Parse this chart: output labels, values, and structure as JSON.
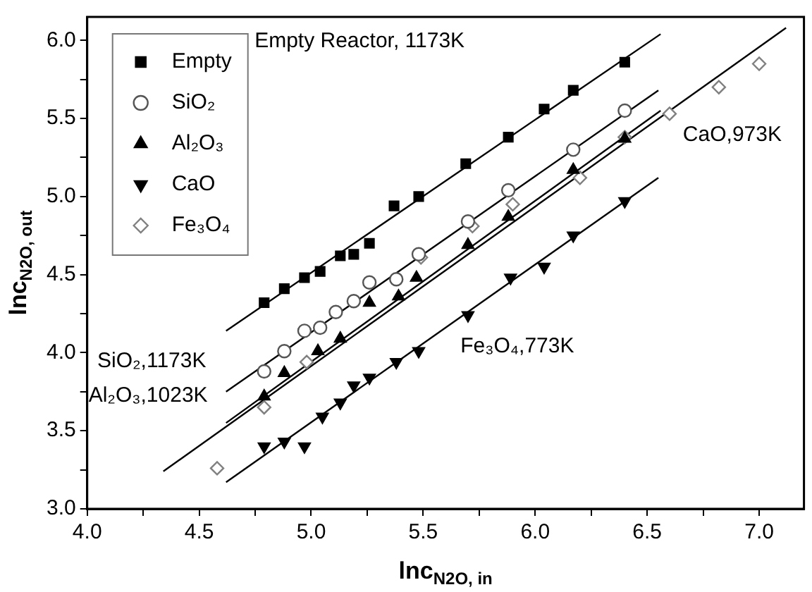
{
  "chart_data": {
    "type": "scatter",
    "xlabel": "lnc$_{N2O, in}$",
    "ylabel": "lnc$_{N2O, out}$",
    "legend": "top left",
    "xlim": [
      4.0,
      7.2
    ],
    "ylim": [
      3.0,
      6.15
    ],
    "xticks": [
      {
        "value": 4.0,
        "label": "4.0"
      },
      {
        "value": 4.25,
        "label": null
      },
      {
        "value": 4.5,
        "label": "4.5"
      },
      {
        "value": 4.75,
        "label": null
      },
      {
        "value": 5.0,
        "label": "5.0"
      },
      {
        "value": 5.25,
        "label": null
      },
      {
        "value": 5.5,
        "label": "5.5"
      },
      {
        "value": 5.75,
        "label": null
      },
      {
        "value": 6.0,
        "label": "6.0"
      },
      {
        "value": 6.25,
        "label": null
      },
      {
        "value": 6.5,
        "label": "6.5"
      },
      {
        "value": 6.75,
        "label": null
      },
      {
        "value": 7.0,
        "label": "7.0"
      }
    ],
    "yticks": [
      {
        "value": 3.0,
        "label": "3.0"
      },
      {
        "value": 3.25,
        "label": null
      },
      {
        "value": 3.5,
        "label": "3.5"
      },
      {
        "value": 3.75,
        "label": null
      },
      {
        "value": 4.0,
        "label": "4.0"
      },
      {
        "value": 4.25,
        "label": null
      },
      {
        "value": 4.5,
        "label": "4.5"
      },
      {
        "value": 4.75,
        "label": null
      },
      {
        "value": 5.0,
        "label": "5.0"
      },
      {
        "value": 5.25,
        "label": null
      },
      {
        "value": 5.5,
        "label": "5.5"
      },
      {
        "value": 5.75,
        "label": null
      },
      {
        "value": 6.0,
        "label": "6.0"
      }
    ],
    "series": [
      {
        "name": "Empty",
        "color": "#000000",
        "marker": "square",
        "x": [
          4.79,
          4.88,
          4.97,
          5.04,
          5.13,
          5.19,
          5.26,
          5.37,
          5.48,
          5.69,
          5.88,
          6.04,
          6.17,
          6.4
        ],
        "values": [
          4.32,
          4.41,
          4.48,
          4.52,
          4.62,
          4.63,
          4.7,
          4.94,
          5.0,
          5.21,
          5.38,
          5.56,
          5.68,
          5.86
        ]
      },
      {
        "name": "SiO₂",
        "color": "#555555",
        "marker": "circle",
        "x": [
          4.79,
          4.88,
          4.97,
          5.04,
          5.11,
          5.19,
          5.26,
          5.38,
          5.48,
          5.7,
          5.88,
          6.17,
          6.4
        ],
        "values": [
          3.88,
          4.01,
          4.14,
          4.16,
          4.26,
          4.33,
          4.45,
          4.47,
          4.63,
          4.84,
          5.04,
          5.3,
          5.55
        ]
      },
      {
        "name": "Al₂O₃",
        "color": "#000000",
        "marker": "triangle",
        "x": [
          4.79,
          4.88,
          5.03,
          5.13,
          5.26,
          5.39,
          5.47,
          5.7,
          5.88,
          6.17,
          6.4
        ],
        "values": [
          3.72,
          3.87,
          4.01,
          4.09,
          4.32,
          4.36,
          4.48,
          4.69,
          4.87,
          5.17,
          5.37
        ]
      },
      {
        "name": "CaO",
        "color": "#000000",
        "marker": "triangle-down",
        "x": [
          4.79,
          4.88,
          4.97,
          5.05,
          5.13,
          5.19,
          5.26,
          5.38,
          5.48,
          5.7,
          5.89,
          6.04,
          6.17,
          6.4
        ],
        "values": [
          3.4,
          3.43,
          3.4,
          3.59,
          3.68,
          3.79,
          3.84,
          3.94,
          4.01,
          4.24,
          4.48,
          4.55,
          4.75,
          4.97
        ]
      },
      {
        "name": "Fe₃O₄",
        "color": "#808080",
        "marker": "diamond",
        "x": [
          4.58,
          4.79,
          4.98,
          5.49,
          5.72,
          5.9,
          6.2,
          6.4,
          6.6,
          6.82,
          7.0
        ],
        "values": [
          3.26,
          3.65,
          3.94,
          4.61,
          4.81,
          4.95,
          5.12,
          5.38,
          5.53,
          5.7,
          5.85
        ]
      },
      {
        "type": "line",
        "color": "#000000",
        "marker": "none",
        "x": [
          4.62,
          6.56
        ],
        "values": [
          4.14,
          6.04
        ]
      },
      {
        "type": "line",
        "color": "#000000",
        "marker": "none",
        "x": [
          4.62,
          6.55
        ],
        "values": [
          3.75,
          5.68
        ]
      },
      {
        "type": "line",
        "color": "#000000",
        "marker": "none",
        "x": [
          4.62,
          6.56
        ],
        "values": [
          3.55,
          5.55
        ]
      },
      {
        "type": "line",
        "color": "#000000",
        "marker": "none",
        "x": [
          4.34,
          7.12
        ],
        "values": [
          3.24,
          6.08
        ]
      },
      {
        "type": "line",
        "color": "#000000",
        "marker": "none",
        "x": [
          4.62,
          6.55
        ],
        "values": [
          3.17,
          5.12
        ]
      }
    ],
    "annotations": [
      "Empty Reactor, 1173K",
      "SiO₂,1173K",
      "Al₂O₃,1023K",
      "CaO,973K",
      "Fe₃O₄,773K"
    ]
  }
}
